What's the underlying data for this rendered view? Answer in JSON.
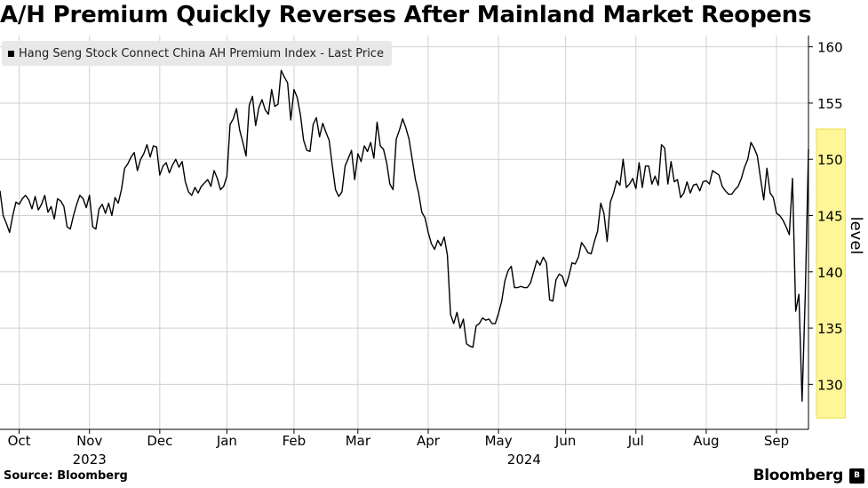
{
  "title": "A/H Premium Quickly Reverses After Mainland Market Reopens",
  "source": "Source: Bloomberg",
  "brand": "Bloomberg",
  "brand_mark": "B",
  "colors": {
    "line": "#000000",
    "highlight": "#fff68f",
    "highlight_border": "#e8dc3c",
    "grid": "#d0d0d0",
    "legend_bg": "#e8e8e8"
  },
  "chart_data": {
    "type": "line",
    "title": "A/H Premium Quickly Reverses After Mainland Market Reopens",
    "ylabel": "level",
    "xlabel": "",
    "ylim": [
      126,
      161
    ],
    "yticks": [
      130,
      135,
      140,
      145,
      150,
      155,
      160
    ],
    "legend": [
      {
        "label": "Hang Seng Stock Connect China AH Premium Index - Last Price",
        "marker": "square"
      }
    ],
    "x_ticks": [
      {
        "label": "Oct",
        "index": 6
      },
      {
        "label": "Nov",
        "index": 28
      },
      {
        "label": "Dec",
        "index": 50
      },
      {
        "label": "Jan",
        "index": 71
      },
      {
        "label": "Feb",
        "index": 92
      },
      {
        "label": "Mar",
        "index": 112
      },
      {
        "label": "Apr",
        "index": 134
      },
      {
        "label": "May",
        "index": 156
      },
      {
        "label": "Jun",
        "index": 177
      },
      {
        "label": "Jul",
        "index": 199
      },
      {
        "label": "Aug",
        "index": 221
      },
      {
        "label": "Sep",
        "index": 243
      }
    ],
    "years": [
      {
        "label": "2023",
        "index": 28
      },
      {
        "label": "2024",
        "index": 164
      }
    ],
    "highlight_range": [
      255.5,
      264.5
    ],
    "series": [
      {
        "name": "Hang Seng Stock Connect China AH Premium Index - Last Price",
        "values": [
          147.2,
          145.0,
          144.3,
          143.5,
          145.0,
          146.2,
          146.0,
          146.5,
          146.8,
          146.4,
          145.6,
          146.7,
          145.5,
          146.0,
          146.8,
          145.3,
          145.8,
          144.7,
          146.5,
          146.3,
          145.8,
          144.0,
          143.8,
          145.0,
          146.0,
          146.8,
          146.5,
          145.7,
          146.8,
          144.0,
          143.8,
          145.6,
          146.0,
          145.2,
          146.1,
          145.0,
          146.6,
          146.1,
          147.3,
          149.2,
          149.6,
          150.2,
          150.6,
          149.0,
          150.0,
          150.5,
          151.3,
          150.2,
          151.2,
          151.1,
          148.6,
          149.4,
          149.7,
          148.8,
          149.5,
          150.0,
          149.3,
          149.8,
          148.0,
          147.1,
          146.8,
          147.5,
          147.0,
          147.6,
          147.9,
          148.2,
          147.6,
          149.0,
          148.3,
          147.3,
          147.6,
          148.5,
          153.1,
          153.6,
          154.5,
          152.6,
          151.5,
          150.3,
          154.8,
          155.6,
          153.0,
          154.6,
          155.3,
          154.4,
          154.0,
          156.2,
          154.7,
          154.9,
          157.9,
          157.3,
          156.8,
          153.5,
          156.2,
          155.5,
          154.0,
          151.7,
          150.8,
          150.7,
          153.1,
          153.7,
          152.0,
          153.2,
          152.4,
          151.7,
          149.4,
          147.3,
          146.7,
          147.1,
          149.4,
          150.1,
          150.8,
          148.2,
          150.5,
          149.8,
          151.2,
          150.7,
          151.5,
          150.1,
          153.3,
          151.2,
          150.9,
          149.7,
          147.8,
          147.3,
          151.8,
          152.6,
          153.6,
          152.8,
          151.8,
          150.0,
          148.2,
          147.0,
          145.3,
          144.8,
          143.5,
          142.5,
          142.0,
          142.8,
          142.3,
          143.1,
          141.5,
          136.2,
          135.4,
          136.4,
          135.0,
          135.8,
          133.6,
          133.4,
          133.3,
          135.2,
          135.4,
          135.9,
          135.7,
          135.8,
          135.4,
          135.4,
          136.3,
          137.4,
          139.2,
          140.1,
          140.5,
          138.6,
          138.6,
          138.7,
          138.6,
          138.6,
          139.0,
          140.0,
          141.0,
          140.6,
          141.3,
          140.8,
          137.5,
          137.4,
          139.3,
          139.8,
          139.6,
          138.7,
          139.6,
          140.8,
          140.7,
          141.3,
          142.6,
          142.2,
          141.7,
          141.6,
          142.7,
          143.6,
          146.1,
          145.2,
          142.7,
          146.2,
          147.0,
          148.1,
          147.7,
          150.0,
          147.5,
          147.8,
          148.3,
          147.4,
          149.7,
          147.5,
          149.4,
          149.4,
          147.8,
          148.5,
          147.7,
          151.3,
          151.0,
          147.8,
          149.8,
          148.0,
          148.2,
          146.6,
          147.0,
          148.0,
          147.0,
          147.7,
          147.8,
          147.2,
          148.0,
          148.1,
          147.8,
          149.0,
          148.8,
          148.6,
          147.6,
          147.2,
          146.9,
          146.9,
          147.3,
          147.6,
          148.3,
          149.3,
          150.0,
          151.5,
          151.0,
          150.3,
          148.3,
          146.4,
          149.2,
          147.0,
          146.6,
          145.2,
          145.0,
          144.6,
          144.0,
          143.3,
          148.3,
          136.5,
          138.0,
          128.5,
          138.0,
          150.9
        ]
      }
    ]
  }
}
